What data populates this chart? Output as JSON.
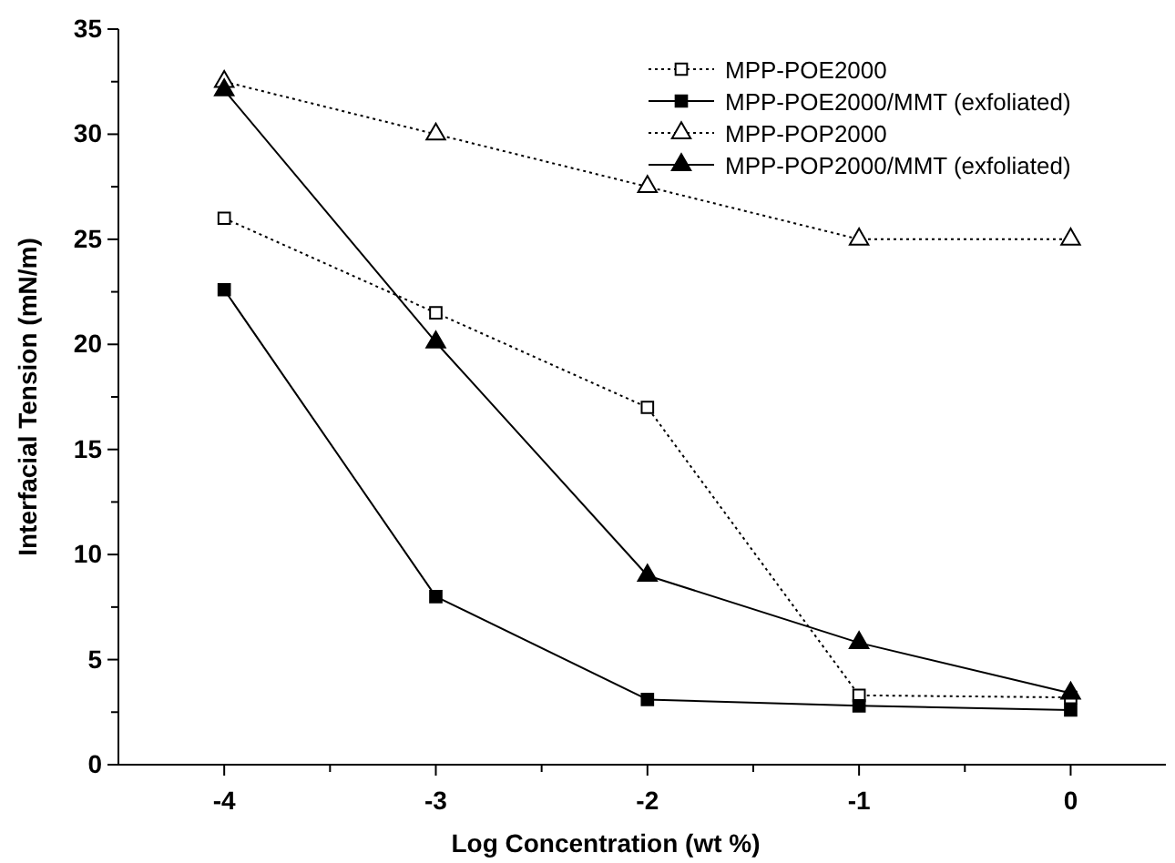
{
  "chart_data": {
    "type": "line",
    "xlabel": "Log Concentration (wt %)",
    "ylabel": "Interfacial Tension (mN/m)",
    "x": [
      -4,
      -3,
      -2,
      -1,
      0
    ],
    "xlim": [
      -4.5,
      0.45
    ],
    "xticks": [
      -4,
      {
        "value": -3.5,
        "label": null
      },
      -3,
      {
        "value": -2.5,
        "label": null
      },
      -2,
      {
        "value": -1.5,
        "label": null
      },
      -1,
      {
        "value": -0.5,
        "label": null
      },
      0
    ],
    "ylim": [
      0,
      35
    ],
    "yticks": [
      0,
      {
        "value": 2.5,
        "label": null
      },
      5,
      {
        "value": 7.5,
        "label": null
      },
      10,
      {
        "value": 12.5,
        "label": null
      },
      15,
      {
        "value": 17.5,
        "label": null
      },
      20,
      {
        "value": 22.5,
        "label": null
      },
      25,
      {
        "value": 27.5,
        "label": null
      },
      30,
      {
        "value": 32.5,
        "label": null
      },
      35
    ],
    "grid": false,
    "legend": "top right",
    "series": [
      {
        "name": "MPP-POE2000",
        "color": "#000000",
        "values": [
          26,
          21.5,
          17,
          3.3,
          3.2
        ],
        "marker": "square",
        "line_style": "dotted"
      },
      {
        "name": "MPP-POE2000/MMT (exfoliated)",
        "color": "#000000",
        "values": [
          22.6,
          8,
          3.1,
          2.8,
          2.6
        ],
        "marker": "square",
        "line_style": "solid"
      },
      {
        "name": "MPP-POP2000",
        "color": "#000000",
        "values": [
          32.5,
          30,
          27.5,
          25,
          25
        ],
        "marker": "triangle",
        "line_style": "dotted"
      },
      {
        "name": "MPP-POP2000/MMT (exfoliated)",
        "color": "#000000",
        "values": [
          32.1,
          20.1,
          9,
          5.8,
          3.4
        ],
        "marker": "triangle",
        "line_style": "solid"
      }
    ]
  }
}
